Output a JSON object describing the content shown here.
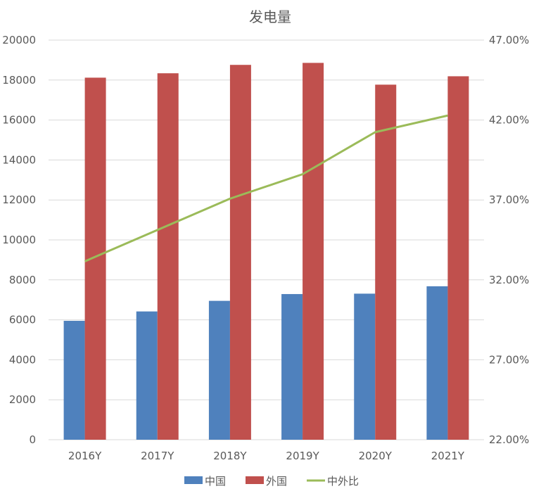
{
  "chart_data": {
    "type": "bar",
    "title": "发电量",
    "categories": [
      "2016Y",
      "2017Y",
      "2018Y",
      "2019Y",
      "2020Y",
      "2021Y"
    ],
    "series": [
      {
        "name": "中国",
        "type": "bar",
        "axis": "left",
        "color": "#4F81BD",
        "values": [
          5950,
          6420,
          6950,
          7290,
          7310,
          7680
        ]
      },
      {
        "name": "外国",
        "type": "bar",
        "axis": "left",
        "color": "#C0504D",
        "values": [
          18120,
          18340,
          18760,
          18860,
          17770,
          18190
        ]
      },
      {
        "name": "中外比",
        "type": "line",
        "axis": "right",
        "color": "#9BBB59",
        "values": [
          0.3316,
          0.3512,
          0.3708,
          0.3861,
          0.4124,
          0.4228
        ]
      }
    ],
    "ylim": [
      0,
      20000
    ],
    "y_ticks": [
      "0",
      "2000",
      "4000",
      "6000",
      "8000",
      "10000",
      "12000",
      "14000",
      "16000",
      "18000",
      "20000"
    ],
    "y2lim": [
      0.22,
      0.47
    ],
    "y2_ticks": [
      "22.00%",
      "27.00%",
      "32.00%",
      "37.00%",
      "42.00%",
      "47.00%"
    ],
    "grid": true,
    "legend_position": "bottom"
  }
}
